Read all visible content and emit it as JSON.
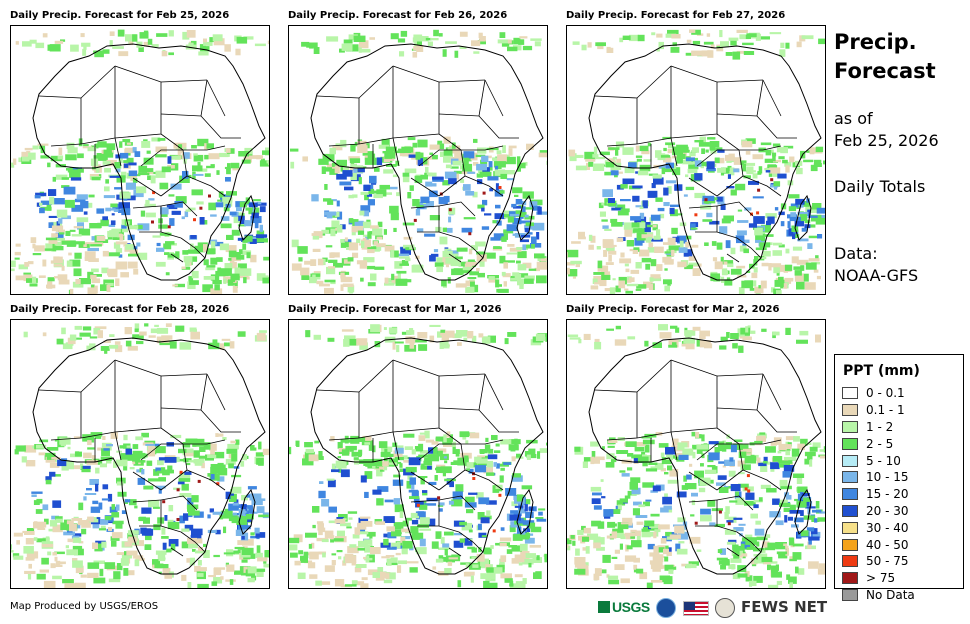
{
  "panels": [
    {
      "title": "Daily Precip. Forecast for Feb 25, 2026"
    },
    {
      "title": "Daily Precip. Forecast for Feb 26, 2026"
    },
    {
      "title": "Daily Precip. Forecast for Feb 27, 2026"
    },
    {
      "title": "Daily Precip. Forecast for Feb 28, 2026"
    },
    {
      "title": "Daily Precip. Forecast for Mar 1, 2026"
    },
    {
      "title": "Daily Precip. Forecast for Mar 2, 2026"
    }
  ],
  "side": {
    "title_line1": "Precip.",
    "title_line2": "Forecast",
    "asof_line1": "as of",
    "asof_line2": "Feb 25, 2026",
    "totals": "Daily Totals",
    "data_line1": "Data:",
    "data_line2": "NOAA-GFS"
  },
  "legend": {
    "title": "PPT (mm)",
    "items": [
      {
        "label": "0 - 0.1",
        "color": "#ffffff"
      },
      {
        "label": "0.1 - 1",
        "color": "#e9d8b8"
      },
      {
        "label": "1 - 2",
        "color": "#b8f5a8"
      },
      {
        "label": "2 - 5",
        "color": "#63e35a"
      },
      {
        "label": "5 - 10",
        "color": "#b6ecf6"
      },
      {
        "label": "10 - 15",
        "color": "#7ab6ea"
      },
      {
        "label": "15 - 20",
        "color": "#3f86e0"
      },
      {
        "label": "20 - 30",
        "color": "#1f4fd0"
      },
      {
        "label": "30 - 40",
        "color": "#f6e08a"
      },
      {
        "label": "40 - 50",
        "color": "#f3a21b"
      },
      {
        "label": "50 - 75",
        "color": "#ee3a12"
      },
      {
        "label": "> 75",
        "color": "#a01818"
      },
      {
        "label": "No Data",
        "color": "#9a9a9a"
      }
    ]
  },
  "footer": {
    "credit": "Map Produced by USGS/EROS"
  },
  "logos": {
    "usgs": "USGS",
    "fews": "FEWS NET"
  }
}
